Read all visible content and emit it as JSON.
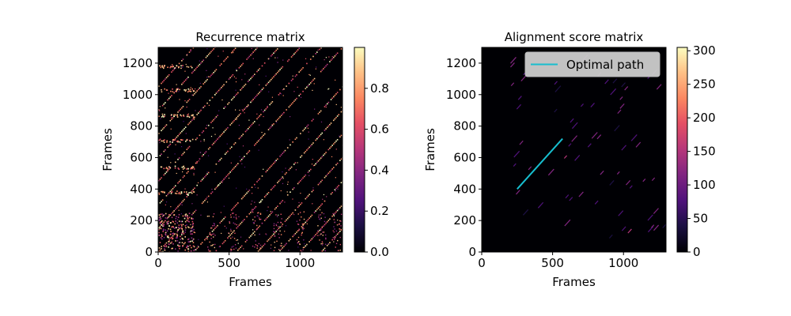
{
  "chart_data": [
    {
      "type": "heatmap",
      "title": "Recurrence matrix",
      "xlabel": "Frames",
      "ylabel": "Frames",
      "xlim": [
        0,
        1300
      ],
      "ylim": [
        0,
        1300
      ],
      "xticks": [
        0,
        500,
        1000
      ],
      "yticks": [
        0,
        200,
        400,
        600,
        800,
        1000,
        1200
      ],
      "colormap": "magma",
      "colorbar": {
        "range": [
          0,
          1.0
        ],
        "ticks": [
          "0.0",
          "0.2",
          "0.4",
          "0.6",
          "0.8"
        ]
      },
      "description_of_values": "sparse binary-like recurrence values with diagonal stripes parallel to the main diagonal",
      "diagonal_offsets": [
        -1150,
        -1000,
        -850,
        -700,
        -550,
        -400,
        -250,
        0,
        150,
        300,
        450,
        600,
        750,
        900,
        1050
      ],
      "legend": null,
      "grid": false
    },
    {
      "type": "heatmap",
      "title": "Alignment score matrix",
      "xlabel": "Frames",
      "ylabel": "Frames",
      "xlim": [
        0,
        1300
      ],
      "ylim": [
        0,
        1300
      ],
      "xticks": [
        0,
        500,
        1000
      ],
      "yticks": [
        0,
        200,
        400,
        600,
        800,
        1000,
        1200
      ],
      "colormap": "magma",
      "colorbar": {
        "range": [
          0,
          305
        ],
        "ticks": [
          "0",
          "50",
          "100",
          "150",
          "200",
          "250",
          "300"
        ]
      },
      "series": [
        {
          "name": "Optimal path",
          "type": "line",
          "color": "#17becf",
          "x": [
            250,
            570
          ],
          "y": [
            400,
            720
          ]
        }
      ],
      "legend": "top-right",
      "grid": false
    }
  ]
}
